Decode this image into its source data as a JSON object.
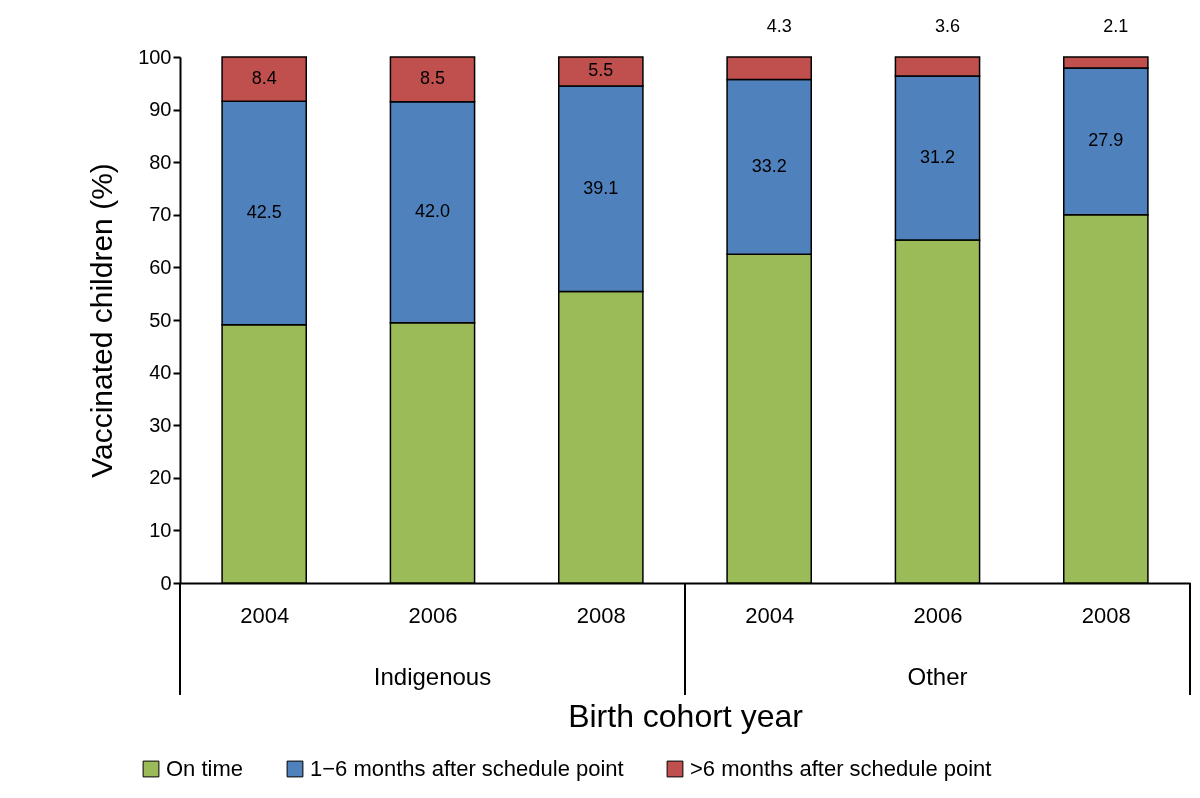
{
  "chart_data": {
    "type": "bar",
    "stacked": true,
    "ylabel": "Vaccinated children (%)",
    "xlabel": "Birth cohort year",
    "categories": [
      "2004",
      "2006",
      "2008",
      "2004",
      "2006",
      "2008"
    ],
    "annotations": [
      "Indigenous",
      "Other"
    ],
    "ylim": [
      0,
      100
    ],
    "yticks": [
      0,
      10,
      20,
      30,
      40,
      50,
      60,
      70,
      80,
      90,
      100
    ],
    "grid": false,
    "legend": "bottom",
    "series": [
      {
        "name": "On time",
        "color": "#9bbb59",
        "values": [
          49.1,
          49.5,
          55.4,
          62.5,
          65.2,
          70.0
        ]
      },
      {
        "name": "1−6 months after schedule point",
        "color": "#4f81bd",
        "values": [
          42.5,
          42.0,
          39.1,
          33.2,
          31.2,
          27.9
        ],
        "value_labels": [
          "42.5",
          "42.0",
          "39.1",
          "33.2",
          "31.2",
          "27.9"
        ]
      },
      {
        "name": ">6 months after schedule point",
        "color": "#c0504d",
        "values": [
          8.4,
          8.5,
          5.5,
          4.3,
          3.6,
          2.1
        ],
        "value_labels": [
          "8.4",
          "8.5",
          "5.5",
          "4.3",
          "3.6",
          "2.1"
        ]
      }
    ]
  }
}
